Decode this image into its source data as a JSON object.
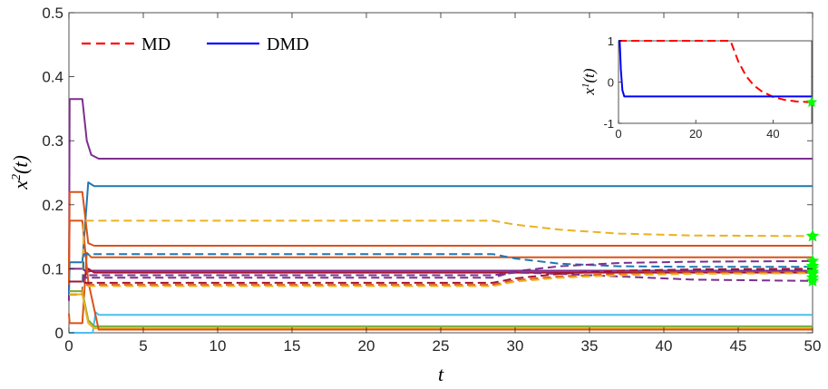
{
  "colors": {
    "blue": "#1f77b4",
    "orange": "#d95319",
    "yellow": "#edb120",
    "purple": "#7e2f8e",
    "green": "#77ac30",
    "cyan": "#4dbeee",
    "darkred": "#a2142f",
    "md_red": "#ff0000",
    "dmd_blue": "#0000ff",
    "star_green": "#00ff00"
  },
  "chart_data": [
    {
      "type": "line",
      "title": "",
      "xlabel": "t",
      "ylabel": "x2(t)",
      "ylabel_sup": "2",
      "xlim": [
        0,
        50
      ],
      "ylim": [
        0,
        0.5
      ],
      "xticks": [
        "0",
        "5",
        "10",
        "15",
        "20",
        "25",
        "30",
        "35",
        "40",
        "45",
        "50"
      ],
      "yticks": [
        "0",
        "0.1",
        "0.2",
        "0.3",
        "0.4",
        "0.5"
      ],
      "legend": {
        "placement": "top-left",
        "entries": [
          {
            "label": "MD",
            "style": "dashed",
            "color": "#ff0000"
          },
          {
            "label": "DMD",
            "style": "solid",
            "color": "#0000ff"
          }
        ]
      },
      "dmd_series": [
        {
          "color": "purple",
          "x": [
            0,
            0.05,
            0.9,
            1.2,
            1.5,
            2,
            50
          ],
          "y": [
            0.05,
            0.365,
            0.365,
            0.3,
            0.278,
            0.272,
            0.272
          ]
        },
        {
          "color": "blue",
          "x": [
            0,
            0.05,
            0.9,
            1.3,
            1.7,
            2,
            50
          ],
          "y": [
            0.06,
            0.11,
            0.11,
            0.235,
            0.229,
            0.229,
            0.229
          ]
        },
        {
          "color": "orange",
          "x": [
            0,
            0.05,
            0.9,
            1.3,
            1.7,
            2,
            50
          ],
          "y": [
            0.075,
            0.22,
            0.22,
            0.14,
            0.136,
            0.136,
            0.136
          ]
        },
        {
          "color": "orange",
          "x": [
            0,
            0.05,
            0.9,
            1.2,
            1.5,
            2,
            50
          ],
          "y": [
            0.03,
            0.015,
            0.015,
            0.125,
            0.118,
            0.118,
            0.118
          ]
        },
        {
          "color": "purple",
          "x": [
            0,
            0.9,
            1.2,
            1.6,
            2,
            50
          ],
          "y": [
            0.1,
            0.1,
            0.095,
            0.097,
            0.097,
            0.097
          ]
        },
        {
          "color": "darkred",
          "x": [
            0,
            0.9,
            1.3,
            1.7,
            2,
            50
          ],
          "y": [
            0.08,
            0.08,
            0.1,
            0.094,
            0.094,
            0.094
          ]
        },
        {
          "color": "cyan",
          "x": [
            0,
            1.6,
            1.8,
            2,
            50
          ],
          "y": [
            0.0,
            0.0,
            0.032,
            0.028,
            0.028
          ]
        },
        {
          "color": "green",
          "x": [
            0,
            0.9,
            1.3,
            1.7,
            2,
            50
          ],
          "y": [
            0.065,
            0.065,
            0.02,
            0.01,
            0.01,
            0.01
          ]
        },
        {
          "color": "yellow",
          "x": [
            0,
            0.9,
            1.3,
            1.7,
            2,
            50
          ],
          "y": [
            0.06,
            0.06,
            0.015,
            0.007,
            0.007,
            0.007
          ]
        },
        {
          "color": "orange",
          "x": [
            0,
            0.05,
            0.9,
            1.3,
            2,
            50
          ],
          "y": [
            0.1,
            0.175,
            0.175,
            0.08,
            0.005,
            0.005
          ]
        }
      ],
      "md_series": [
        {
          "color": "yellow",
          "x": [
            0,
            0.9,
            1.0,
            28.5,
            30,
            33,
            37,
            42,
            50
          ],
          "y": [
            0.06,
            0.06,
            0.175,
            0.175,
            0.169,
            0.161,
            0.155,
            0.152,
            0.151
          ]
        },
        {
          "color": "blue",
          "x": [
            0,
            0.9,
            1.0,
            28.5,
            30,
            33,
            37,
            42,
            50
          ],
          "y": [
            0.06,
            0.06,
            0.123,
            0.123,
            0.116,
            0.108,
            0.104,
            0.103,
            0.103
          ]
        },
        {
          "color": "purple",
          "x": [
            0,
            0.9,
            1.0,
            28.5,
            30,
            33,
            37,
            42,
            50
          ],
          "y": [
            0.06,
            0.06,
            0.09,
            0.09,
            0.094,
            0.092,
            0.088,
            0.083,
            0.081
          ]
        },
        {
          "color": "purple",
          "x": [
            0,
            0.9,
            1.0,
            28.5,
            30,
            33,
            37,
            42,
            50
          ],
          "y": [
            0.06,
            0.06,
            0.086,
            0.086,
            0.096,
            0.104,
            0.109,
            0.111,
            0.112
          ]
        },
        {
          "color": "darkred",
          "x": [
            0,
            0.9,
            1.0,
            28.5,
            30,
            33,
            37,
            42,
            50
          ],
          "y": [
            0.06,
            0.06,
            0.078,
            0.078,
            0.085,
            0.092,
            0.097,
            0.099,
            0.1
          ]
        },
        {
          "color": "orange",
          "x": [
            0,
            0.9,
            1.0,
            28.5,
            30,
            33,
            37,
            42,
            50
          ],
          "y": [
            0.06,
            0.06,
            0.075,
            0.075,
            0.082,
            0.088,
            0.092,
            0.094,
            0.095
          ]
        },
        {
          "color": "yellow",
          "x": [
            0,
            0.9,
            1.0,
            28.5,
            30,
            33,
            37,
            42,
            50
          ],
          "y": [
            0.06,
            0.06,
            0.073,
            0.073,
            0.08,
            0.086,
            0.09,
            0.092,
            0.093
          ]
        }
      ],
      "star_markers": {
        "x": 50,
        "y": [
          0.151,
          0.112,
          0.104,
          0.1,
          0.095,
          0.092,
          0.086,
          0.081
        ]
      }
    },
    {
      "type": "line",
      "title": "",
      "xlabel": "",
      "ylabel": "x1(t)",
      "ylabel_sup": "1",
      "xlim": [
        0,
        50
      ],
      "ylim": [
        -1,
        1
      ],
      "xticks": [
        "0",
        "20",
        "40"
      ],
      "yticks": [
        "-1",
        "0",
        "1"
      ],
      "series": [
        {
          "style": "dashed",
          "color": "#ff0000",
          "x": [
            0,
            29,
            31,
            33,
            35,
            37,
            40,
            43,
            46,
            50
          ],
          "y": [
            1,
            1,
            0.5,
            0.15,
            -0.08,
            -0.22,
            -0.36,
            -0.43,
            -0.47,
            -0.49
          ]
        },
        {
          "style": "solid",
          "color": "#0000ff",
          "x": [
            0,
            0.3,
            0.6,
            1,
            1.5,
            50
          ],
          "y": [
            1,
            1,
            0.3,
            -0.2,
            -0.35,
            -0.35
          ]
        }
      ],
      "star_markers": {
        "x": 50,
        "y": [
          -0.49
        ]
      }
    }
  ]
}
